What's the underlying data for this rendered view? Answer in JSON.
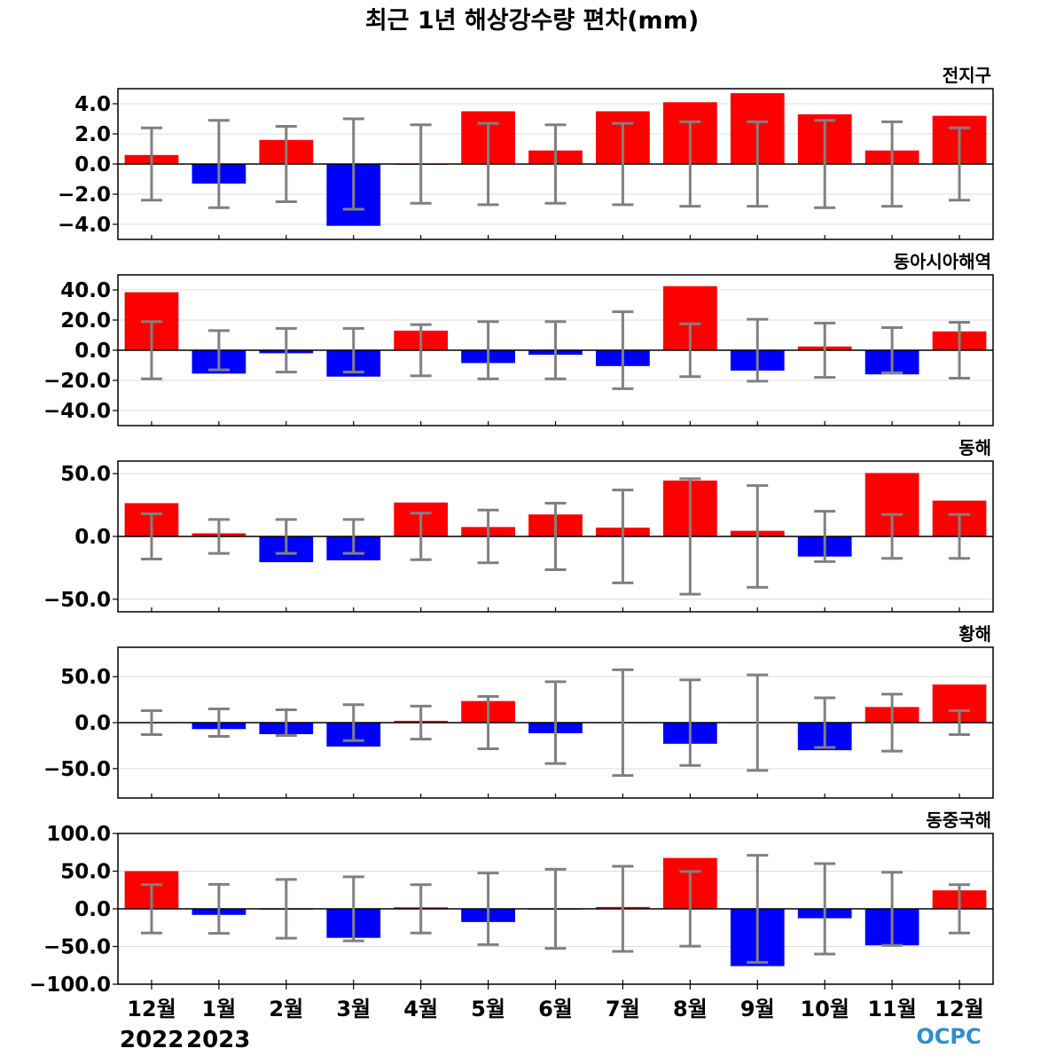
{
  "chart_data": {
    "title": "최근 1년 해상강수량 편차(mm)",
    "type": "bar",
    "categories": [
      "12월",
      "1월",
      "2월",
      "3월",
      "4월",
      "5월",
      "6월",
      "7월",
      "8월",
      "9월",
      "10월",
      "11월",
      "12월"
    ],
    "year_labels": [
      "2022",
      "2023"
    ],
    "colors": {
      "positive": "#ff0000",
      "negative": "#0000ff",
      "errorbar": "#808080"
    },
    "grid": true,
    "zero_line": true,
    "panels": [
      {
        "title": "전지구",
        "ylim": [
          -5,
          5
        ],
        "yticks": [
          4,
          2,
          0,
          -2,
          -4
        ],
        "ytick_labels": [
          "4.0",
          "2.0",
          "0.0",
          "−2.0",
          "−4.0"
        ],
        "values": [
          0.6,
          -1.3,
          1.6,
          -4.1,
          0.0,
          3.5,
          0.9,
          3.5,
          4.1,
          4.7,
          3.3,
          0.9,
          3.2
        ],
        "error": [
          2.4,
          2.9,
          2.5,
          3.0,
          2.6,
          2.7,
          2.6,
          2.7,
          2.8,
          2.8,
          2.9,
          2.8,
          2.4
        ]
      },
      {
        "title": "동아시아해역",
        "ylim": [
          -50,
          50
        ],
        "yticks": [
          40,
          20,
          0,
          -20,
          -40
        ],
        "ytick_labels": [
          "40.0",
          "20.0",
          "0.0",
          "−20.0",
          "−40.0"
        ],
        "values": [
          38.5,
          -15.5,
          -2.0,
          -17.5,
          13.0,
          -8.5,
          -3.0,
          -10.5,
          42.5,
          -13.5,
          2.5,
          -16.0,
          12.5
        ],
        "error": [
          19.0,
          13.0,
          14.5,
          14.5,
          17.0,
          19.0,
          19.0,
          25.5,
          17.5,
          20.5,
          18.0,
          15.0,
          18.5
        ]
      },
      {
        "title": "동해",
        "ylim": [
          -60,
          60
        ],
        "yticks": [
          50,
          0,
          -50
        ],
        "ytick_labels": [
          "50.0",
          "0.0",
          "−50.0"
        ],
        "values": [
          26.5,
          2.5,
          -20.5,
          -19.0,
          27.0,
          7.5,
          17.5,
          7.0,
          44.5,
          4.5,
          -16.0,
          50.5,
          28.5
        ],
        "error": [
          18.0,
          13.5,
          13.5,
          13.5,
          18.5,
          21.0,
          26.5,
          37.0,
          46.0,
          40.5,
          20.0,
          17.5,
          17.5
        ]
      },
      {
        "title": "황해",
        "ylim": [
          -82,
          82
        ],
        "yticks": [
          50,
          0,
          -50
        ],
        "ytick_labels": [
          "50.0",
          "0.0",
          "−50.0"
        ],
        "values": [
          0.5,
          -7.0,
          -12.5,
          -26.0,
          2.0,
          23.5,
          -11.5,
          0.5,
          -23.0,
          0.5,
          -30.0,
          17.0,
          41.5
        ],
        "error": [
          13.0,
          15.0,
          14.0,
          19.5,
          18.0,
          28.5,
          44.5,
          57.5,
          46.5,
          52.0,
          27.0,
          31.0,
          13.0
        ]
      },
      {
        "title": "동중국해",
        "ylim": [
          -100,
          100
        ],
        "yticks": [
          100,
          50,
          0,
          -50,
          -100
        ],
        "ytick_labels": [
          "100.0",
          "50.0",
          "0.0",
          "−50.0",
          "−100.0"
        ],
        "values": [
          50.0,
          -8.0,
          -1.0,
          -38.5,
          2.0,
          -17.5,
          -1.0,
          2.5,
          67.5,
          -76.0,
          -12.5,
          -48.5,
          24.5
        ],
        "error": [
          32.0,
          32.5,
          39.0,
          42.5,
          32.0,
          47.5,
          52.5,
          56.5,
          49.5,
          71.0,
          60.0,
          48.5,
          32.0
        ]
      }
    ]
  },
  "logo": {
    "text": "OCPC"
  }
}
